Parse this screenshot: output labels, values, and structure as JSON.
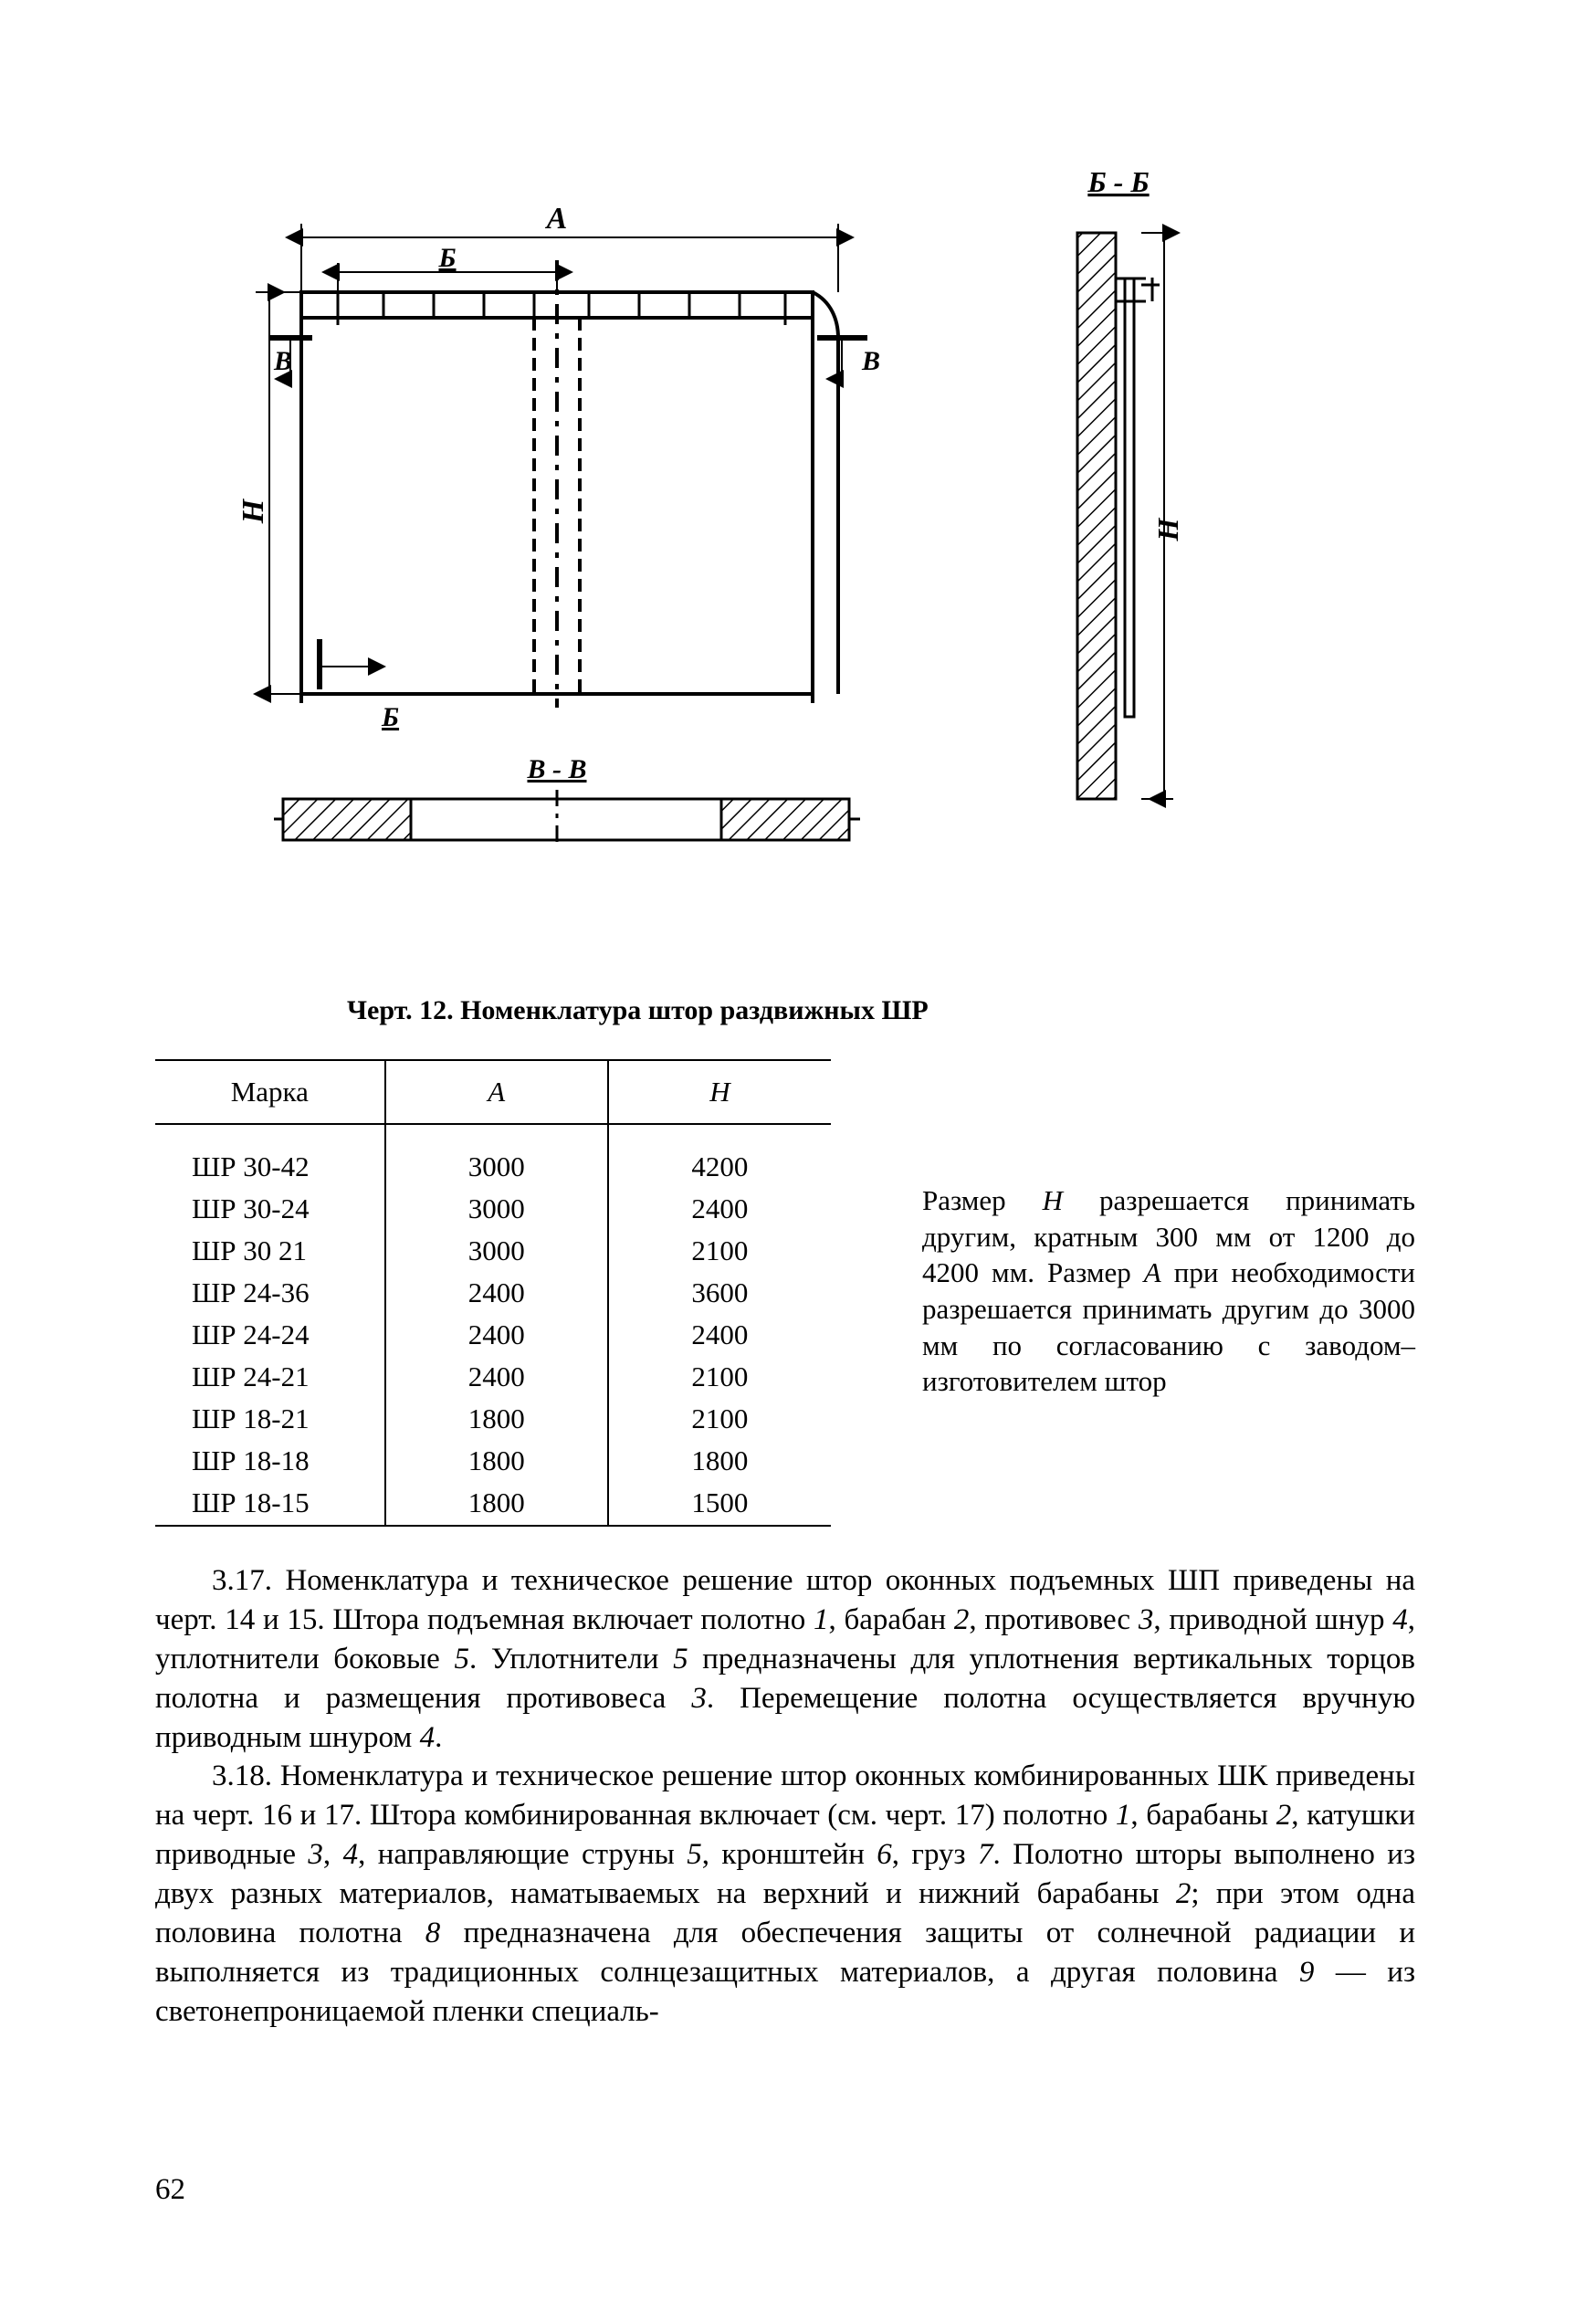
{
  "caption": "Черт. 12. Номенклатура штор раздвижных ШР",
  "diagram": {
    "labels": {
      "A": "А",
      "B_top": "Б",
      "B_bot": "Б",
      "V_left": "В",
      "V_right": "В",
      "H": "Н",
      "section_BB": "Б - Б",
      "section_VV": "В - В",
      "H_right": "Н"
    },
    "stroke": "#000000",
    "stroke_width": 3,
    "hatch_spacing": 10
  },
  "table": {
    "columns": [
      "Марка",
      "А",
      "Н"
    ],
    "rows": [
      [
        "ШР 30-42",
        "3000",
        "4200"
      ],
      [
        "ШР 30-24",
        "3000",
        "2400"
      ],
      [
        "ШР 30 21",
        "3000",
        "2100"
      ],
      [
        "ШР 24-36",
        "2400",
        "3600"
      ],
      [
        "ШР 24-24",
        "2400",
        "2400"
      ],
      [
        "ШР 24-21",
        "2400",
        "2100"
      ],
      [
        "ШР 18-21",
        "1800",
        "2100"
      ],
      [
        "ШР 18-18",
        "1800",
        "1800"
      ],
      [
        "ШР 18-15",
        "1800",
        "1500"
      ]
    ]
  },
  "side_note_html": "Размер <span class=\"italic\">Н</span> разрешается при­нимать другим, кратным 300 мм от 1200 до 4200 мм. Размер <span class=\"italic\">А</span> при необходи­мости разрешается при­нимать другим до 3000 мм по согласованию с заво­дом–изготовителем штор",
  "body_html": "<p>3.17. Номенклатура и техническое решение штор оконных подъемных ШП приведены на черт. 14 и 15. Штора подъемная включает полотно <span class=\"italic\">1</span>, барабан <span class=\"italic\">2</span>, противовес <span class=\"italic\">3</span>, приводной шнур <span class=\"italic\">4</span>, уплотнители боковые <span class=\"italic\">5</span>. Уплот­нители <span class=\"italic\">5</span> предназначены для уплотнения вертикальных торцов полотна и размещения противовеса <span class=\"italic\">3</span>. Перемещение полотна осуществляется вручную приводным шнуром <span class=\"italic\">4</span>.</p><p>3.18. Номенклатура и техническое решение штор оконных комбиниро­ванных ШК приведены на черт. 16 и 17. Штора комбинированная включает (см. черт. 17) полотно <span class=\"italic\">1</span>, барабаны <span class=\"italic\">2</span>, катушки приводные <span class=\"italic\">3</span>, <span class=\"italic\">4</span>, направляю­щие струны <span class=\"italic\">5</span>, кронштейн <span class=\"italic\">6</span>, груз <span class=\"italic\">7</span>. Полотно шторы выполнено из двух разных материалов, наматываемых на верхний и нижний барабаны <span class=\"italic\">2</span>; при этом одна половина полотна <span class=\"italic\">8</span> предназначена для обеспечения защиты от солнечной радиации и выполняется из традиционных солнцезащитных ма­териалов, а другая половина <span class=\"italic\">9</span> — из светонепроницаемой пленки специаль-</p>",
  "page_number": "62"
}
